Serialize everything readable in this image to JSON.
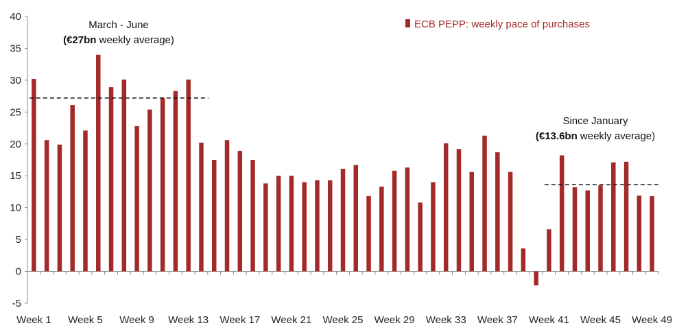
{
  "chart_data": {
    "type": "bar",
    "series": [
      {
        "name": "ECB PEPP: weekly pace of purchases",
        "color": "#a32a2a",
        "values": [
          30.2,
          20.6,
          19.9,
          26.1,
          22.1,
          34.0,
          28.9,
          30.1,
          22.8,
          25.4,
          27.2,
          28.3,
          30.1,
          20.2,
          17.5,
          20.6,
          18.9,
          17.5,
          13.8,
          15.0,
          15.0,
          14.0,
          14.3,
          14.3,
          16.1,
          16.7,
          11.8,
          13.3,
          15.8,
          16.3,
          10.8,
          14.0,
          20.1,
          19.2,
          15.6,
          21.3,
          18.7,
          15.6,
          3.6,
          -2.2,
          6.6,
          18.2,
          13.2,
          12.7,
          13.5,
          17.1,
          17.2,
          11.9,
          11.8
        ]
      }
    ],
    "x_tick_labels": [
      "Week 1",
      "Week 5",
      "Week 9",
      "Week 13",
      "Week 17",
      "Week 21",
      "Week 25",
      "Week 29",
      "Week 33",
      "Week 37",
      "Week 41",
      "Week 45",
      "Week 49"
    ],
    "y_ticks": [
      "-5",
      "0",
      "5",
      "10",
      "15",
      "20",
      "25",
      "30",
      "35",
      "40"
    ],
    "ylim": [
      -5,
      40
    ],
    "grid": false,
    "legend_position": "top-right",
    "reference_lines": [
      {
        "value": 27.2,
        "from_bar": 1,
        "to_bar": 14
      },
      {
        "value": 13.6,
        "from_bar": 41,
        "to_bar": 49
      }
    ],
    "annotations": [
      {
        "line1": "March - June",
        "line2_bold": "(€27bn",
        "line2_rest": " weekly average)"
      },
      {
        "line1": "Since January",
        "line2_bold": "(€13.6bn",
        "line2_rest": " weekly average)"
      }
    ]
  }
}
